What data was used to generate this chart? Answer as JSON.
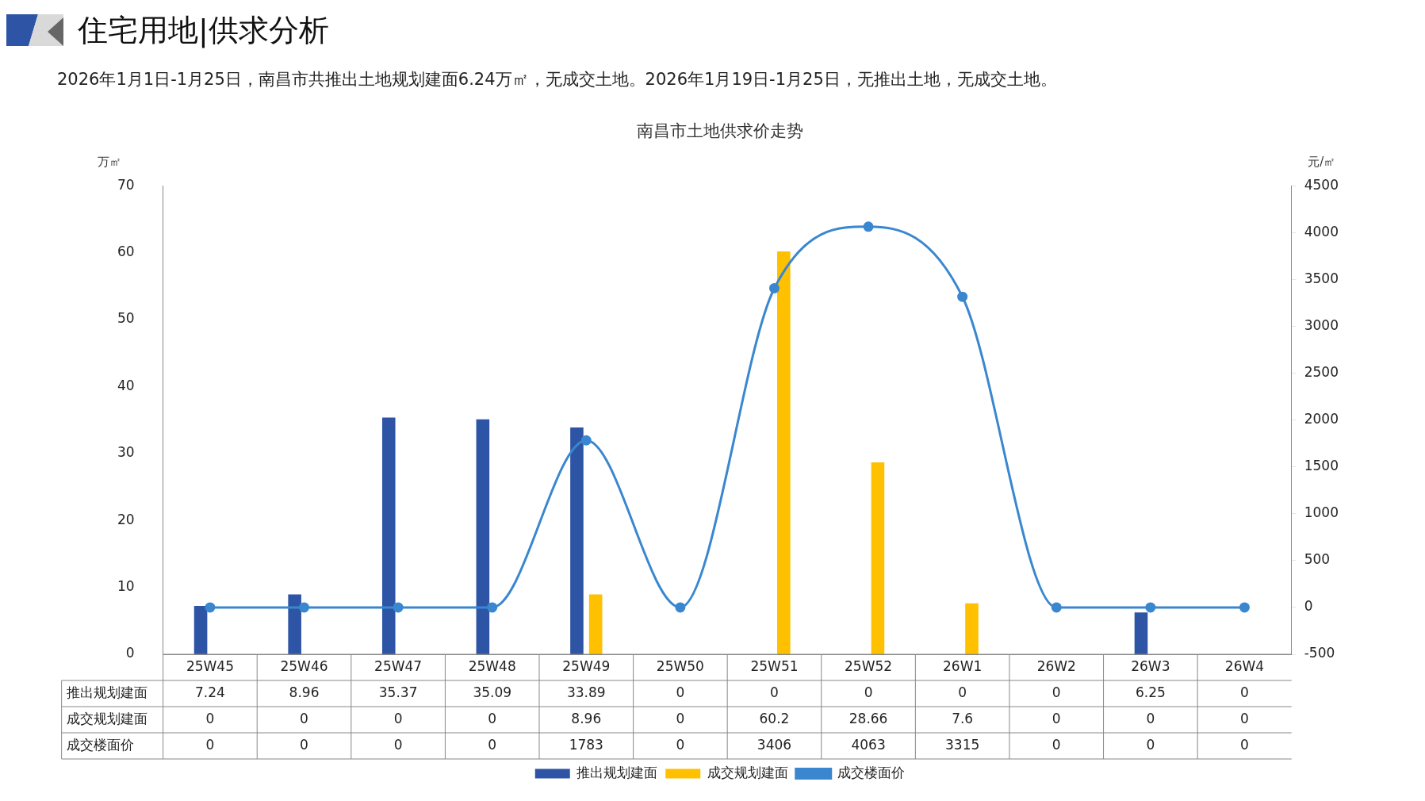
{
  "chart_data": {
    "type": "bar",
    "title": "南昌市土地供求价走势",
    "subtitle": "2026年1月1日-1月25日，南昌市共推出土地规划建面6.24万㎡，无成交土地。2026年1月19日-1月25日，无推出土地，无成交土地。",
    "annotations": [
      "住宅用地|供求分析"
    ],
    "ylabel": "万㎡",
    "y2label": "元/㎡",
    "categories": [
      "25W45",
      "25W46",
      "25W47",
      "25W48",
      "25W49",
      "25W50",
      "25W51",
      "25W52",
      "26W1",
      "26W2",
      "26W3",
      "26W4"
    ],
    "series": [
      {
        "name": "推出规划建面",
        "type": "bar",
        "color": "#2e55a5",
        "values": [
          7.24,
          8.96,
          35.37,
          35.09,
          33.89,
          0,
          0,
          0,
          0,
          0,
          6.25,
          0
        ]
      },
      {
        "name": "成交规划建面",
        "type": "bar",
        "color": "#ffc000",
        "values": [
          0,
          0,
          0,
          0,
          8.96,
          0,
          60.2,
          28.66,
          7.6,
          0,
          0,
          0
        ]
      },
      {
        "name": "成交楼面价",
        "type": "line",
        "axis": "y2",
        "color": "#3a87d0",
        "marker": "circle",
        "values": [
          0,
          0,
          0,
          0,
          1783,
          0,
          3406,
          4063,
          3315,
          0,
          0,
          0
        ]
      }
    ],
    "ylim": [
      0,
      70
    ],
    "yticks": [
      0,
      10,
      20,
      30,
      40,
      50,
      60,
      70
    ],
    "y2lim": [
      -500,
      4500
    ],
    "y2ticks": [
      -500,
      0,
      500,
      1000,
      1500,
      2000,
      2500,
      3000,
      3500,
      4000,
      4500
    ],
    "grid": false,
    "legend": "bottom",
    "data_labels": true
  }
}
